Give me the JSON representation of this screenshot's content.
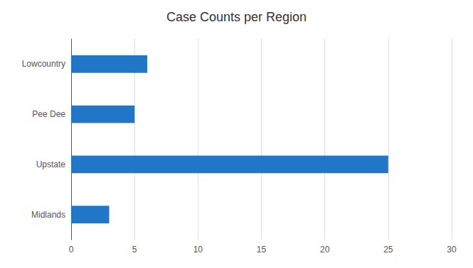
{
  "chart_data": {
    "type": "bar",
    "orientation": "horizontal",
    "title": "Case Counts per Region",
    "categories": [
      "Midlands",
      "Upstate",
      "Pee Dee",
      "Lowcountry"
    ],
    "values": [
      3,
      25,
      5,
      6
    ],
    "color": "#2176C8",
    "xlim": [
      0,
      30
    ],
    "xticks": [
      0,
      5,
      10,
      15,
      20,
      25,
      30
    ],
    "grid": true
  }
}
